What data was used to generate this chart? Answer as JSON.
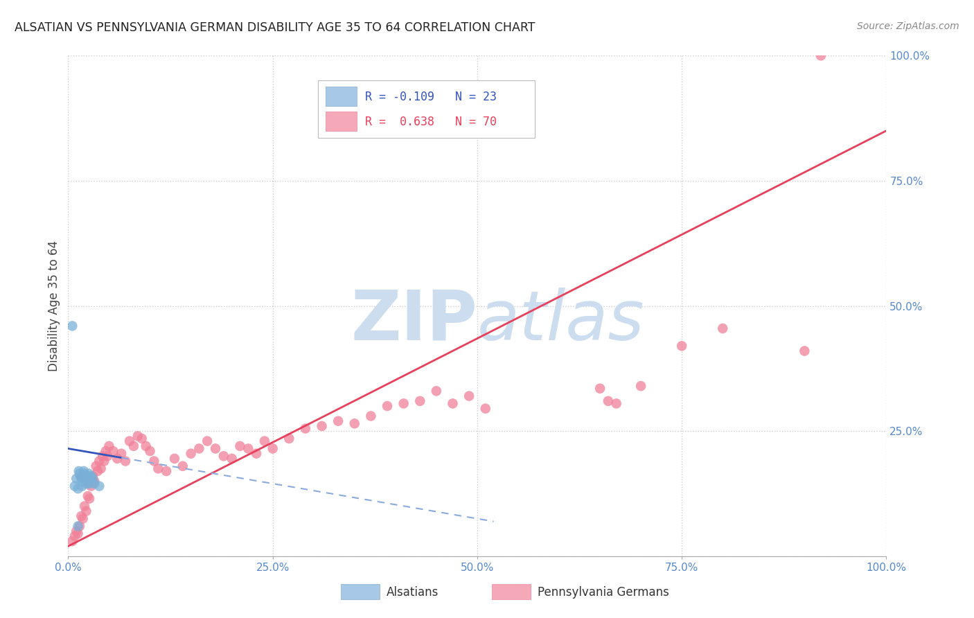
{
  "title": "ALSATIAN VS PENNSYLVANIA GERMAN DISABILITY AGE 35 TO 64 CORRELATION CHART",
  "source": "Source: ZipAtlas.com",
  "ylabel": "Disability Age 35 to 64",
  "xlim": [
    0,
    1.0
  ],
  "ylim": [
    0,
    1.0
  ],
  "alsatian_R": -0.109,
  "alsatian_N": 23,
  "pa_german_R": 0.638,
  "pa_german_N": 70,
  "dot_color_alsatian": "#7ab0d8",
  "dot_color_pa_german": "#f08098",
  "line_color_alsatian": "#3355bb",
  "line_color_pa_german": "#e8405a",
  "line_dashed_color": "#88aadd",
  "grid_color": "#cccccc",
  "background_color": "#ffffff",
  "watermark_color": "#cdddf0",
  "alsatians_x": [
    0.005,
    0.008,
    0.01,
    0.012,
    0.013,
    0.014,
    0.015,
    0.016,
    0.017,
    0.018,
    0.019,
    0.02,
    0.021,
    0.022,
    0.023,
    0.024,
    0.025,
    0.026,
    0.028,
    0.03,
    0.032,
    0.038,
    0.012
  ],
  "alsatians_y": [
    0.46,
    0.14,
    0.155,
    0.135,
    0.17,
    0.165,
    0.16,
    0.155,
    0.14,
    0.15,
    0.17,
    0.165,
    0.155,
    0.145,
    0.16,
    0.155,
    0.165,
    0.145,
    0.16,
    0.155,
    0.145,
    0.14,
    0.06
  ],
  "pa_german_x": [
    0.005,
    0.008,
    0.01,
    0.012,
    0.014,
    0.016,
    0.018,
    0.02,
    0.022,
    0.024,
    0.026,
    0.028,
    0.03,
    0.032,
    0.034,
    0.036,
    0.038,
    0.04,
    0.042,
    0.044,
    0.046,
    0.048,
    0.05,
    0.055,
    0.06,
    0.065,
    0.07,
    0.075,
    0.08,
    0.085,
    0.09,
    0.095,
    0.1,
    0.105,
    0.11,
    0.12,
    0.13,
    0.14,
    0.15,
    0.16,
    0.17,
    0.18,
    0.19,
    0.2,
    0.21,
    0.22,
    0.23,
    0.24,
    0.25,
    0.27,
    0.29,
    0.31,
    0.33,
    0.35,
    0.37,
    0.39,
    0.41,
    0.43,
    0.45,
    0.47,
    0.49,
    0.51,
    0.65,
    0.66,
    0.67,
    0.7,
    0.75,
    0.8,
    0.9,
    0.92
  ],
  "pa_german_y": [
    0.03,
    0.04,
    0.05,
    0.045,
    0.06,
    0.08,
    0.075,
    0.1,
    0.09,
    0.12,
    0.115,
    0.14,
    0.16,
    0.15,
    0.18,
    0.17,
    0.19,
    0.175,
    0.2,
    0.19,
    0.21,
    0.2,
    0.22,
    0.21,
    0.195,
    0.205,
    0.19,
    0.23,
    0.22,
    0.24,
    0.235,
    0.22,
    0.21,
    0.19,
    0.175,
    0.17,
    0.195,
    0.18,
    0.205,
    0.215,
    0.23,
    0.215,
    0.2,
    0.195,
    0.22,
    0.215,
    0.205,
    0.23,
    0.215,
    0.235,
    0.255,
    0.26,
    0.27,
    0.265,
    0.28,
    0.3,
    0.305,
    0.31,
    0.33,
    0.305,
    0.32,
    0.295,
    0.335,
    0.31,
    0.305,
    0.34,
    0.42,
    0.455,
    0.41,
    1.0
  ]
}
